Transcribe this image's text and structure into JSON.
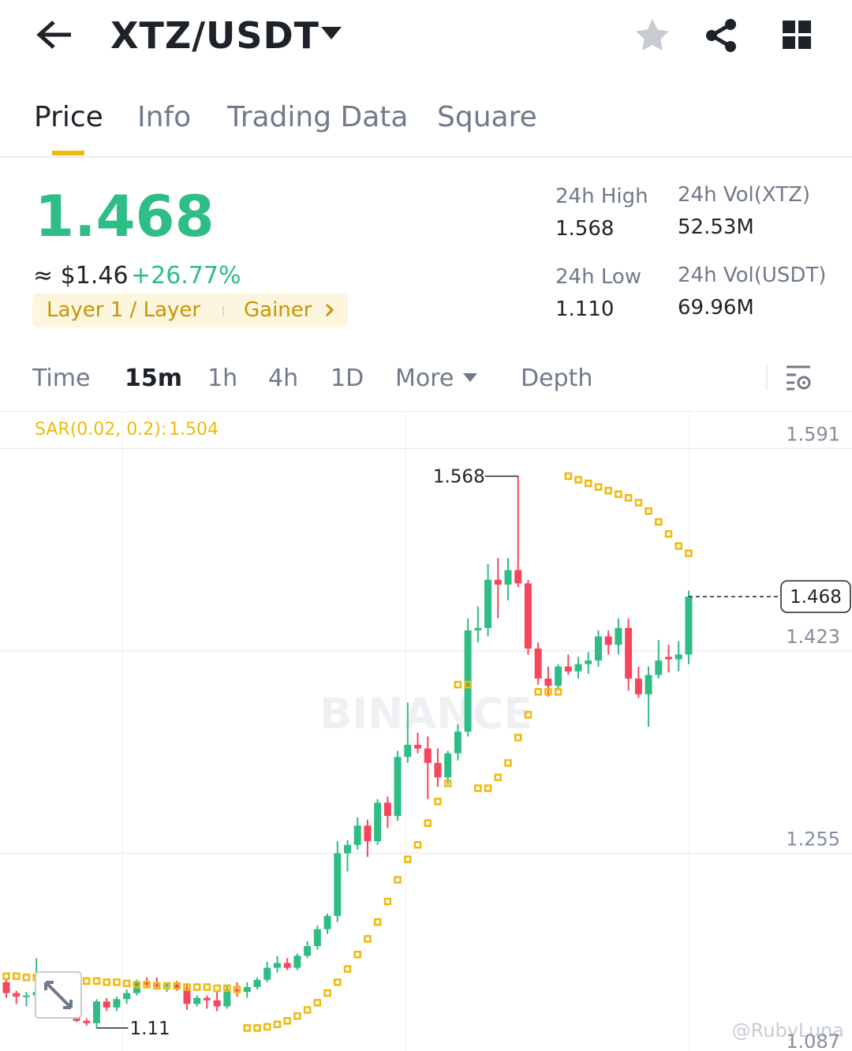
{
  "header": {
    "title": "XTZ/USDT"
  },
  "tabs": [
    "Price",
    "Info",
    "Trading Data",
    "Square"
  ],
  "ticker": {
    "price": "1.468",
    "usd": "≈ $1.46",
    "change": "+26.77%",
    "tags": [
      "Layer 1 / Layer",
      "Gainer"
    ],
    "stats": [
      {
        "label": "24h High",
        "value": "1.568"
      },
      {
        "label": "24h Vol(XTZ)",
        "value": "52.53M"
      },
      {
        "label": "24h Low",
        "value": "1.110"
      },
      {
        "label": "24h Vol(USDT)",
        "value": "69.96M"
      }
    ]
  },
  "intervals": [
    "Time",
    "15m",
    "1h",
    "4h",
    "1D",
    "More",
    "Depth"
  ],
  "watermarks": [
    "BINANCE",
    "@RubyLuna"
  ],
  "chart_data": {
    "type": "candlestick",
    "sar_name": "SAR(0.02, 0.2):",
    "up_color": "#2ebd85",
    "down_color": "#f6465d",
    "sar_color": "#f0b90b",
    "ylim": [
      1.087,
      1.622
    ],
    "yticks": [
      1.591,
      1.423,
      1.255,
      1.087
    ],
    "grid": true,
    "open": [
      1.148,
      1.139,
      1.136,
      1.137,
      1.14,
      1.134,
      1.136,
      1.125,
      1.116,
      1.114,
      1.132,
      1.127,
      1.134,
      1.139,
      1.148,
      1.146,
      1.145,
      1.146,
      1.143,
      1.13,
      1.135,
      1.133,
      1.128,
      1.142,
      1.14,
      1.144,
      1.15,
      1.16,
      1.164,
      1.16,
      1.17,
      1.178,
      1.192,
      1.203,
      1.255,
      1.262,
      1.278,
      1.265,
      1.297,
      1.286,
      1.335,
      1.345,
      1.342,
      1.33,
      1.318,
      1.338,
      1.356,
      1.44,
      1.442,
      1.482,
      1.478,
      1.49,
      1.479,
      1.425,
      1.4,
      1.394,
      1.41,
      1.406,
      1.412,
      1.415,
      1.435,
      1.428,
      1.442,
      1.4,
      1.387,
      1.403,
      1.418,
      1.416,
      1.42
    ],
    "high": [
      1.15,
      1.141,
      1.14,
      1.168,
      1.143,
      1.14,
      1.138,
      1.131,
      1.118,
      1.134,
      1.135,
      1.136,
      1.142,
      1.15,
      1.152,
      1.152,
      1.148,
      1.149,
      1.146,
      1.137,
      1.137,
      1.14,
      1.145,
      1.148,
      1.148,
      1.152,
      1.165,
      1.17,
      1.168,
      1.172,
      1.182,
      1.195,
      1.205,
      1.265,
      1.266,
      1.285,
      1.283,
      1.3,
      1.302,
      1.34,
      1.38,
      1.355,
      1.352,
      1.342,
      1.34,
      1.362,
      1.45,
      1.46,
      1.495,
      1.5,
      1.5,
      1.568,
      1.482,
      1.43,
      1.41,
      1.412,
      1.42,
      1.418,
      1.422,
      1.44,
      1.44,
      1.45,
      1.45,
      1.41,
      1.41,
      1.432,
      1.428,
      1.431,
      1.473
    ],
    "low": [
      1.135,
      1.13,
      1.128,
      1.132,
      1.131,
      1.126,
      1.12,
      1.115,
      1.112,
      1.11,
      1.124,
      1.124,
      1.13,
      1.137,
      1.144,
      1.143,
      1.14,
      1.141,
      1.125,
      1.128,
      1.126,
      1.124,
      1.126,
      1.136,
      1.135,
      1.142,
      1.148,
      1.156,
      1.158,
      1.158,
      1.168,
      1.175,
      1.188,
      1.198,
      1.24,
      1.258,
      1.252,
      1.262,
      1.276,
      1.282,
      1.33,
      1.338,
      1.3,
      1.31,
      1.312,
      1.332,
      1.352,
      1.43,
      1.435,
      1.45,
      1.465,
      1.476,
      1.42,
      1.395,
      1.385,
      1.39,
      1.403,
      1.4,
      1.404,
      1.41,
      1.42,
      1.42,
      1.39,
      1.384,
      1.36,
      1.4,
      1.405,
      1.406,
      1.412
    ],
    "close": [
      1.139,
      1.136,
      1.137,
      1.14,
      1.134,
      1.136,
      1.125,
      1.116,
      1.114,
      1.132,
      1.127,
      1.134,
      1.139,
      1.148,
      1.146,
      1.145,
      1.146,
      1.143,
      1.13,
      1.135,
      1.133,
      1.128,
      1.142,
      1.14,
      1.144,
      1.15,
      1.16,
      1.164,
      1.16,
      1.17,
      1.178,
      1.192,
      1.203,
      1.255,
      1.262,
      1.278,
      1.265,
      1.297,
      1.286,
      1.335,
      1.345,
      1.342,
      1.33,
      1.318,
      1.338,
      1.356,
      1.44,
      1.442,
      1.482,
      1.478,
      1.49,
      1.479,
      1.425,
      1.4,
      1.394,
      1.41,
      1.406,
      1.412,
      1.415,
      1.435,
      1.428,
      1.442,
      1.4,
      1.387,
      1.403,
      1.415,
      1.416,
      1.42,
      1.468
    ],
    "sar": [
      1.153,
      1.153,
      1.152,
      1.152,
      1.151,
      1.151,
      1.15,
      1.15,
      1.149,
      1.149,
      1.148,
      1.148,
      1.147,
      1.146,
      1.146,
      1.145,
      1.145,
      1.145,
      1.144,
      1.144,
      1.144,
      1.143,
      1.143,
      1.142,
      1.11,
      1.11,
      1.111,
      1.113,
      1.116,
      1.12,
      1.125,
      1.131,
      1.139,
      1.148,
      1.159,
      1.171,
      1.184,
      1.198,
      1.215,
      1.233,
      1.25,
      1.262,
      1.28,
      1.298,
      1.313,
      1.395,
      1.395,
      1.309,
      1.309,
      1.318,
      1.33,
      1.351,
      1.37,
      1.389,
      1.389,
      1.389,
      1.568,
      1.565,
      1.562,
      1.559,
      1.556,
      1.553,
      1.55,
      1.546,
      1.539,
      1.53,
      1.52,
      1.51,
      1.504
    ]
  }
}
